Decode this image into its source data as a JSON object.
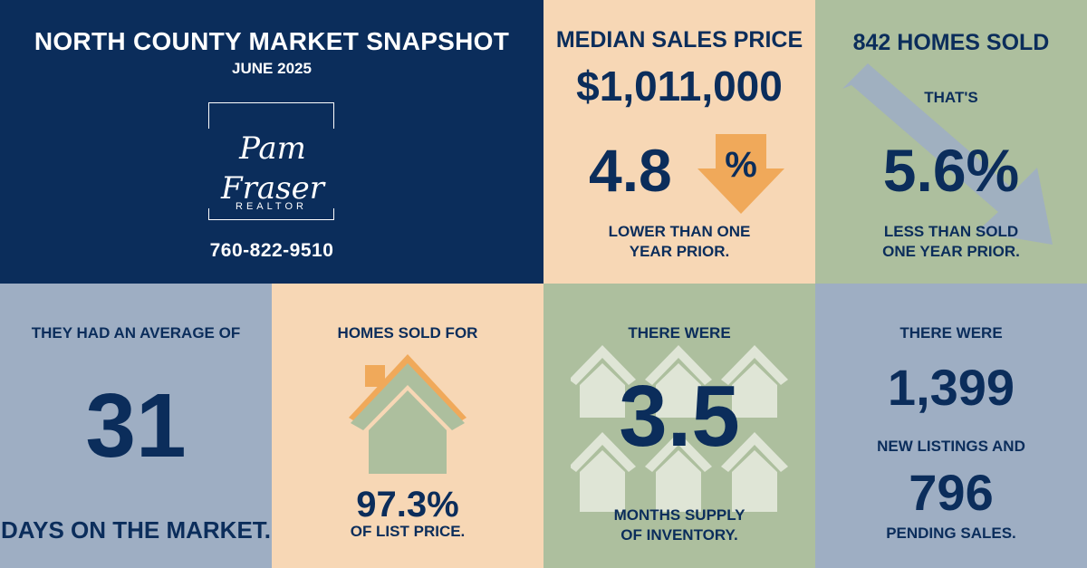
{
  "brand": {
    "title": "NORTH COUNTY MARKET SNAPSHOT",
    "subtitle": "JUNE 2025",
    "logo_signature": "Pam Fraser",
    "logo_tagline": "REALTOR",
    "phone": "760-822-9510"
  },
  "median": {
    "heading": "MEDIAN SALES PRICE",
    "price": "$1,011,000",
    "change_value": "4.8",
    "change_symbol": "%",
    "line1": "LOWER THAN ONE",
    "line2": "YEAR PRIOR."
  },
  "sold": {
    "heading": "842 HOMES SOLD",
    "intro": "THAT'S",
    "change": "5.6%",
    "line1": "LESS THAN SOLD",
    "line2": "ONE YEAR PRIOR."
  },
  "days": {
    "heading": "THEY HAD AN AVERAGE OF",
    "value": "31",
    "caption": "DAYS ON THE MARKET."
  },
  "list_price": {
    "heading": "HOMES SOLD FOR",
    "value": "97.3%",
    "caption": "OF LIST PRICE."
  },
  "inventory": {
    "heading": "THERE WERE",
    "value": "3.5",
    "line1": "MONTHS SUPPLY",
    "line2": "OF INVENTORY."
  },
  "listings": {
    "heading": "THERE WERE",
    "new_listings": "1,399",
    "middle": "NEW LISTINGS AND",
    "pending": "796",
    "caption": "PENDING SALES."
  },
  "colors": {
    "navy": "#0b2d5b",
    "peach": "#f7d7b5",
    "sage": "#adbf9e",
    "slate": "#9eaec3",
    "orange": "#f0a95a"
  },
  "icons": [
    "down-arrow-icon",
    "trend-down-arrow-icon",
    "house-icon",
    "houses-pattern-icon"
  ]
}
